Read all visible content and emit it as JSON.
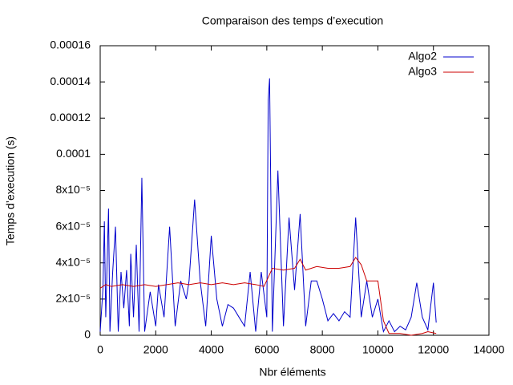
{
  "chart_data": {
    "type": "line",
    "title": "Comparaison des temps d’execution",
    "x_label": "Nbr éléments",
    "y_label": "Temps d’execution (s)",
    "xlim": [
      0,
      14000
    ],
    "xticks": [
      0,
      2000,
      4000,
      6000,
      8000,
      10000,
      12000,
      14000
    ],
    "ylim": [
      0,
      0.00016
    ],
    "yticks": [
      0,
      {
        "value": 2e-05,
        "label": "2x10⁻⁵"
      },
      {
        "value": 4e-05,
        "label": "4x10⁻⁵"
      },
      {
        "value": 6e-05,
        "label": "6x10⁻⁵"
      },
      {
        "value": 8e-05,
        "label": "8x10⁻⁵"
      },
      0.0001,
      0.00012,
      0.00014,
      0.00016
    ],
    "legend": "top-right",
    "grid": false,
    "series": [
      {
        "name": "Algo2",
        "color": "#0000cc",
        "x": [
          0,
          100,
          150,
          200,
          300,
          350,
          450,
          550,
          650,
          750,
          850,
          950,
          1050,
          1100,
          1200,
          1300,
          1400,
          1500,
          1600,
          1800,
          2000,
          2100,
          2300,
          2500,
          2700,
          2900,
          3100,
          3200,
          3400,
          3600,
          3800,
          4000,
          4200,
          4400,
          4600,
          4800,
          5000,
          5200,
          5400,
          5600,
          5800,
          6000,
          6050,
          6100,
          6200,
          6400,
          6600,
          6800,
          7000,
          7200,
          7400,
          7600,
          7800,
          8000,
          8200,
          8400,
          8600,
          8800,
          9000,
          9200,
          9400,
          9600,
          9800,
          10000,
          10200,
          10400,
          10600,
          10800,
          11000,
          11200,
          11400,
          11600,
          11800,
          12000,
          12100
        ],
        "values": [
          2e-06,
          2.6e-05,
          6.3e-05,
          1e-05,
          7e-05,
          2e-06,
          3.5e-05,
          6e-05,
          2e-06,
          3.5e-05,
          1.5e-05,
          3.6e-05,
          5e-06,
          4.5e-05,
          1e-05,
          5e-05,
          2e-06,
          8.7e-05,
          2e-06,
          2.4e-05,
          5e-06,
          2.8e-05,
          1e-05,
          6e-05,
          5e-06,
          3e-05,
          2e-05,
          3e-05,
          7.5e-05,
          3e-05,
          5e-06,
          5.5e-05,
          2e-05,
          5e-06,
          1.7e-05,
          1.5e-05,
          1e-05,
          5e-06,
          3.5e-05,
          2e-06,
          3.5e-05,
          1e-05,
          0.00013,
          0.000142,
          2e-06,
          9.1e-05,
          5e-06,
          6.5e-05,
          2.5e-05,
          6.7e-05,
          5e-06,
          3e-05,
          3e-05,
          2e-05,
          8e-06,
          1.2e-05,
          8e-06,
          1.3e-05,
          1e-05,
          6.5e-05,
          1e-05,
          3e-05,
          1e-05,
          2e-05,
          2e-06,
          8e-06,
          2e-06,
          5e-06,
          3e-06,
          1e-05,
          2.9e-05,
          1e-05,
          3e-06,
          2.9e-05,
          7e-06
        ]
      },
      {
        "name": "Algo3",
        "color": "#cc0000",
        "x": [
          0,
          200,
          400,
          800,
          1200,
          1600,
          2000,
          2400,
          2800,
          3200,
          3600,
          4000,
          4400,
          4800,
          5200,
          5600,
          5900,
          6200,
          6600,
          7000,
          7200,
          7400,
          7800,
          8200,
          8600,
          9000,
          9200,
          9400,
          9600,
          10000,
          10200,
          10400,
          10800,
          11200,
          11600,
          11800,
          12100
        ],
        "values": [
          2.6e-05,
          2.8e-05,
          2.7e-05,
          2.8e-05,
          2.7e-05,
          2.8e-05,
          2.7e-05,
          2.8e-05,
          2.9e-05,
          2.8e-05,
          2.9e-05,
          2.8e-05,
          2.9e-05,
          2.8e-05,
          2.9e-05,
          2.8e-05,
          2.7e-05,
          3.7e-05,
          3.6e-05,
          3.7e-05,
          4.2e-05,
          3.6e-05,
          3.8e-05,
          3.7e-05,
          3.7e-05,
          3.8e-05,
          4.3e-05,
          3.9e-05,
          3e-05,
          3e-05,
          8e-06,
          1e-06,
          1e-06,
          0,
          1e-06,
          2e-06,
          1e-06
        ]
      }
    ]
  }
}
